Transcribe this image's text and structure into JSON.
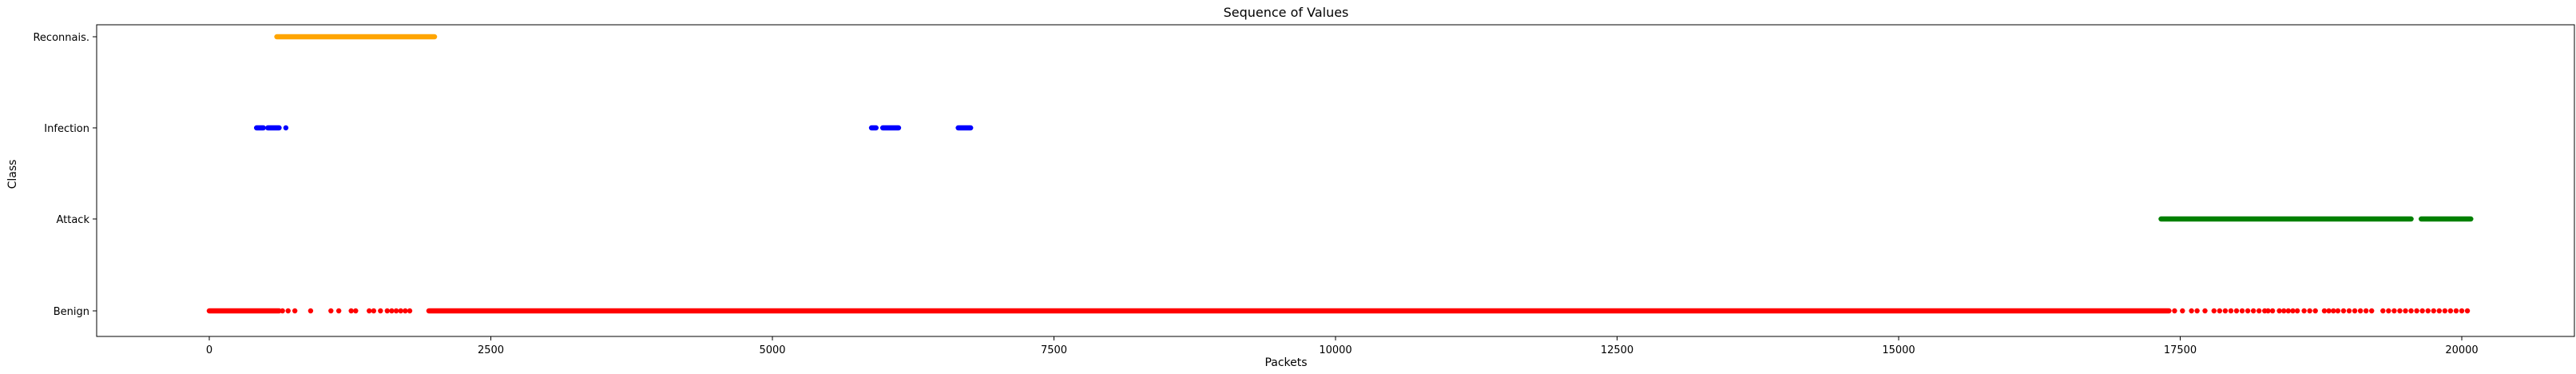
{
  "chart_data": {
    "type": "scatter",
    "title": "Sequence of Values",
    "xlabel": "Packets",
    "ylabel": "Class",
    "xlim": [
      -1000,
      21000
    ],
    "x_ticks": [
      0,
      2500,
      5000,
      7500,
      10000,
      12500,
      15000,
      17500,
      20000
    ],
    "y_categories": [
      "Benign",
      "Attack",
      "Infection",
      "Reconnais."
    ],
    "grid": false,
    "legend": "none",
    "series": [
      {
        "category": "Benign",
        "color": "#ff0000",
        "ranges": [
          [
            0,
            620
          ],
          [
            1950,
            17400
          ]
        ],
        "points": [
          650,
          700,
          760,
          900,
          1080,
          1150,
          1260,
          1300,
          1420,
          1460,
          1520,
          1580,
          1620,
          1660,
          1700,
          1740,
          1780,
          17450,
          17520,
          17600,
          17650,
          17720,
          17800,
          17850,
          17900,
          17950,
          18000,
          18050,
          18100,
          18150,
          18200,
          18250,
          18280,
          18320,
          18380,
          18420,
          18460,
          18500,
          18540,
          18600,
          18650,
          18700,
          18780,
          18820,
          18860,
          18900,
          18950,
          19000,
          19050,
          19100,
          19150,
          19200,
          19300,
          19350,
          19400,
          19450,
          19500,
          19550,
          19600,
          19650,
          19700,
          19750,
          19800,
          19850,
          19900,
          19950,
          20000,
          20050
        ]
      },
      {
        "category": "Attack",
        "color": "#008000",
        "ranges": [
          [
            17330,
            19550
          ],
          [
            19640,
            20080
          ]
        ],
        "points": []
      },
      {
        "category": "Infection",
        "color": "#0000ff",
        "ranges": [
          [
            420,
            480
          ],
          [
            520,
            620
          ],
          [
            5880,
            5920
          ],
          [
            5980,
            6120
          ],
          [
            6650,
            6760
          ]
        ],
        "points": [
          680
        ]
      },
      {
        "category": "Reconnais.",
        "color": "#ffa500",
        "ranges": [
          [
            600,
            2000
          ]
        ],
        "points": []
      }
    ]
  }
}
